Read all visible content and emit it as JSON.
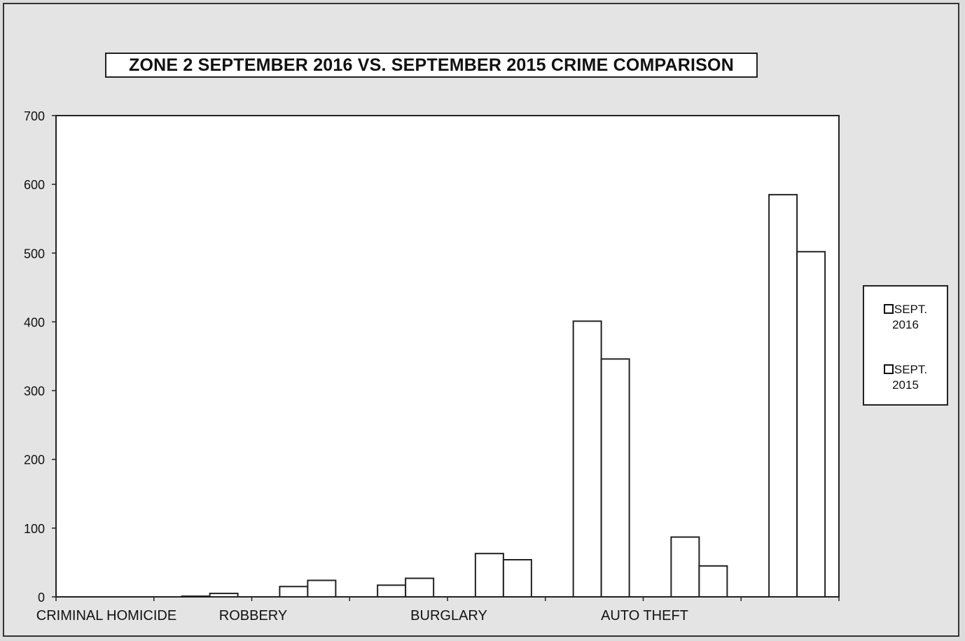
{
  "chart_data": {
    "type": "bar",
    "title": "ZONE 2  SEPTEMBER 2016 VS. SEPTEMBER 2015 CRIME COMPARISON",
    "xlabel": "",
    "ylabel": "",
    "ylim": [
      0,
      700
    ],
    "yticks": [
      0,
      100,
      200,
      300,
      400,
      500,
      600,
      700
    ],
    "categories": [
      "CRIMINAL HOMICIDE",
      "",
      "ROBBERY",
      "",
      "BURGLARY",
      "",
      "AUTO THEFT",
      ""
    ],
    "x_tick_labels": [
      "CRIMINAL HOMICIDE",
      "ROBBERY",
      "BURGLARY",
      "AUTO THEFT"
    ],
    "series": [
      {
        "name": "SEPT. 2016",
        "values": [
          0,
          1,
          15,
          17,
          63,
          401,
          87,
          585
        ]
      },
      {
        "name": "SEPT. 2015",
        "values": [
          0,
          5,
          24,
          27,
          54,
          346,
          45,
          502
        ]
      }
    ],
    "legend_position": "right",
    "grid": false
  },
  "colors": {
    "plot_bg": "#ffffff",
    "bar_fill": "#ffffff",
    "bar_stroke": "#222222",
    "background": "#e4e4e4"
  },
  "legend": {
    "items": [
      {
        "line1": "SEPT.",
        "line2": "2016"
      },
      {
        "line1": "SEPT.",
        "line2": "2015"
      }
    ]
  }
}
